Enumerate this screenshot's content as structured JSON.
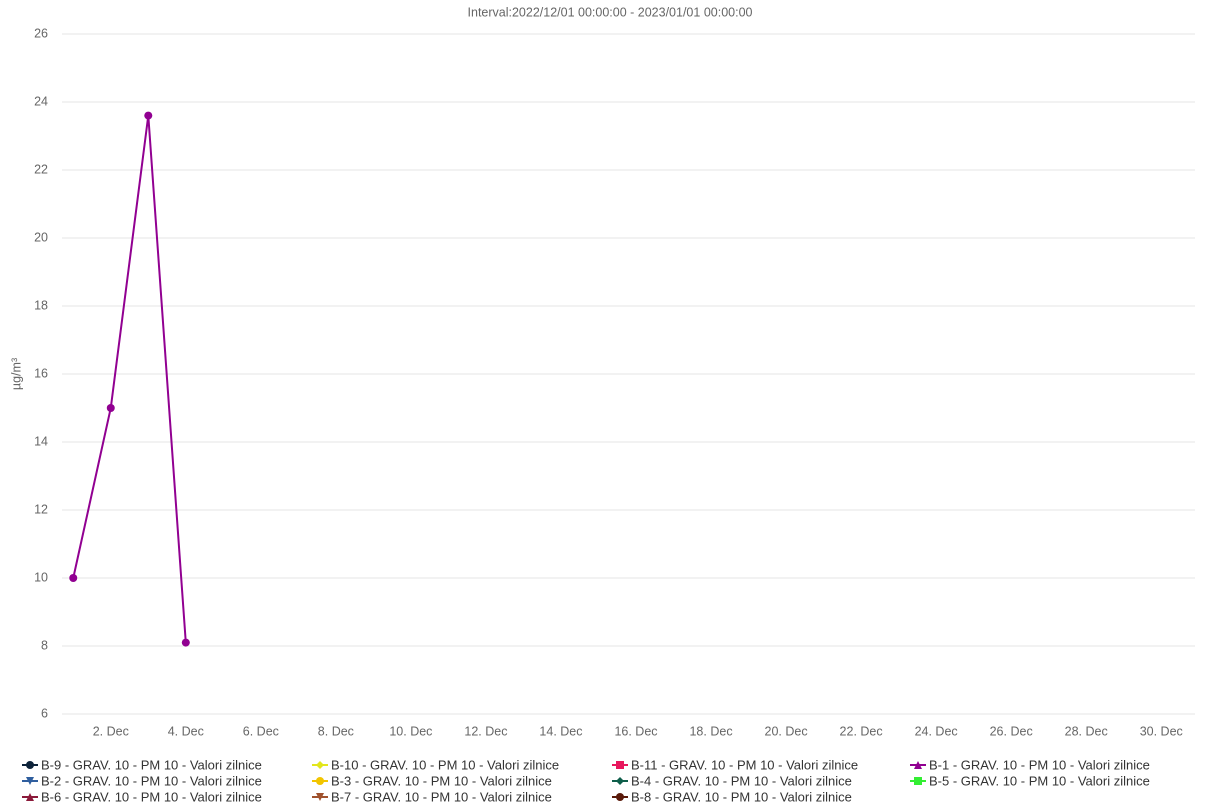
{
  "chart_data": {
    "type": "line",
    "title": "Interval:2022/12/01 00:00:00 - 2023/01/01 00:00:00",
    "y_label": "µg/m³",
    "x": [
      1,
      2,
      3,
      4
    ],
    "xlim": [
      0.7,
      30.9
    ],
    "xticks": [
      {
        "value": 2,
        "label": "2. Dec"
      },
      {
        "value": 4,
        "label": "4. Dec"
      },
      {
        "value": 6,
        "label": "6. Dec"
      },
      {
        "value": 8,
        "label": "8. Dec"
      },
      {
        "value": 10,
        "label": "10. Dec"
      },
      {
        "value": 12,
        "label": "12. Dec"
      },
      {
        "value": 14,
        "label": "14. Dec"
      },
      {
        "value": 16,
        "label": "16. Dec"
      },
      {
        "value": 18,
        "label": "18. Dec"
      },
      {
        "value": 20,
        "label": "20. Dec"
      },
      {
        "value": 22,
        "label": "22. Dec"
      },
      {
        "value": 24,
        "label": "24. Dec"
      },
      {
        "value": 26,
        "label": "26. Dec"
      },
      {
        "value": 28,
        "label": "28. Dec"
      },
      {
        "value": 30,
        "label": "30. Dec"
      }
    ],
    "ylim": [
      6,
      26
    ],
    "yticks": [
      6,
      8,
      10,
      12,
      14,
      16,
      18,
      20,
      22,
      24,
      26
    ],
    "grid": true,
    "legend": "bottom",
    "series": [
      {
        "name": "B-9 - GRAV. 10 - PM 10 - Valori zilnice",
        "color": "#0d233a",
        "marker": "circle",
        "values": [
          null,
          null,
          null,
          null
        ]
      },
      {
        "name": "B-10 - GRAV. 10 - PM 10 - Valori zilnice",
        "color": "#e2e61c",
        "marker": "diamond",
        "values": [
          null,
          null,
          null,
          null
        ]
      },
      {
        "name": "B-11 - GRAV. 10 - PM 10 - Valori zilnice",
        "color": "#e8175d",
        "marker": "square",
        "values": [
          null,
          null,
          null,
          null
        ]
      },
      {
        "name": "B-1 - GRAV. 10 - PM 10 - Valori zilnice",
        "color": "#910091",
        "marker": "triangle",
        "values": [
          10,
          15,
          23.6,
          8.1
        ]
      },
      {
        "name": "B-2 - GRAV. 10 - PM 10 - Valori zilnice",
        "color": "#2f5e9e",
        "marker": "triangle-down",
        "values": [
          null,
          null,
          null,
          null
        ]
      },
      {
        "name": "B-3 - GRAV. 10 - PM 10 - Valori zilnice",
        "color": "#f2c500",
        "marker": "circle",
        "values": [
          null,
          null,
          null,
          null
        ]
      },
      {
        "name": "B-4 - GRAV. 10 - PM 10 - Valori zilnice",
        "color": "#0e5e4a",
        "marker": "diamond",
        "values": [
          null,
          null,
          null,
          null
        ]
      },
      {
        "name": "B-5 - GRAV. 10 - PM 10 - Valori zilnice",
        "color": "#33ee33",
        "marker": "square",
        "values": [
          null,
          null,
          null,
          null
        ]
      },
      {
        "name": "B-6 - GRAV. 10 - PM 10 - Valori zilnice",
        "color": "#8b1a3a",
        "marker": "triangle",
        "values": [
          null,
          null,
          null,
          null
        ]
      },
      {
        "name": "B-7 - GRAV. 10 - PM 10 - Valori zilnice",
        "color": "#a0522d",
        "marker": "triangle-down",
        "values": [
          null,
          null,
          null,
          null
        ]
      },
      {
        "name": "B-8 - GRAV. 10 - PM 10 - Valori zilnice",
        "color": "#5a1a0a",
        "marker": "circle",
        "values": [
          null,
          null,
          null,
          null
        ]
      }
    ]
  }
}
